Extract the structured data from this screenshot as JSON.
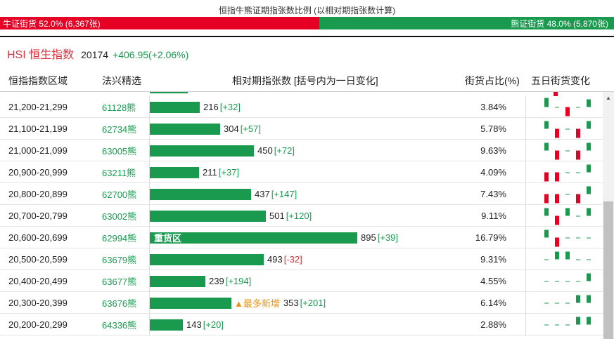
{
  "page_title": "恒指牛熊证期指张数比例 (以相对期指张数计算)",
  "ratio": {
    "bull_label": "牛证街货 52.0% (6,367张)",
    "bear_label": "熊证街货 48.0% (5,870张)",
    "bull_fraction": 0.52,
    "bear_fraction": 0.48,
    "bull_color": "#e60023",
    "bear_color": "#1a9a4f"
  },
  "index": {
    "name": "HSI 恒生指数",
    "value": "20174",
    "change": "+406.95(+2.06%)"
  },
  "columns": {
    "range": "恒指指数区域",
    "code": "法兴精选",
    "contracts": "相对期指张数 [括号内为一日变化]",
    "share": "街货占比(%)",
    "five_day": "五日街货变化"
  },
  "rows": [
    {
      "range": "21,200-21,299",
      "code": "61128熊",
      "value": 216,
      "value_text": "216",
      "change": "[+32]",
      "share": "3.84%",
      "spark": [
        2,
        0,
        -1,
        0,
        1
      ],
      "tag": ""
    },
    {
      "range": "21,100-21,199",
      "code": "62734熊",
      "value": 304,
      "value_text": "304",
      "change": "[+57]",
      "share": "5.78%",
      "spark": [
        1,
        -1,
        0,
        -1,
        1
      ],
      "tag": ""
    },
    {
      "range": "21,000-21,099",
      "code": "63005熊",
      "value": 450,
      "value_text": "450",
      "change": "[+72]",
      "share": "9.63%",
      "spark": [
        1,
        -1,
        0,
        -1,
        1
      ],
      "tag": ""
    },
    {
      "range": "20,900-20,999",
      "code": "63211熊",
      "value": 211,
      "value_text": "211",
      "change": "[+37]",
      "share": "4.09%",
      "spark": [
        -1,
        -1,
        0,
        0,
        1
      ],
      "tag": ""
    },
    {
      "range": "20,800-20,899",
      "code": "62700熊",
      "value": 437,
      "value_text": "437",
      "change": "[+147]",
      "share": "7.43%",
      "spark": [
        -1,
        -1,
        0,
        -1,
        1
      ],
      "tag": ""
    },
    {
      "range": "20,700-20,799",
      "code": "63002熊",
      "value": 501,
      "value_text": "501",
      "change": "[+120]",
      "share": "9.11%",
      "spark": [
        1,
        -1,
        1,
        0,
        1
      ],
      "tag": ""
    },
    {
      "range": "20,600-20,699",
      "code": "62994熊",
      "value": 895,
      "value_text": "895",
      "change": "[+39]",
      "share": "16.79%",
      "spark": [
        1,
        -1,
        0,
        0,
        0
      ],
      "tag": "重货区"
    },
    {
      "range": "20,500-20,599",
      "code": "63679熊",
      "value": 493,
      "value_text": "493",
      "change": "[-32]",
      "share": "9.31%",
      "spark": [
        0,
        1,
        1,
        0,
        0
      ],
      "tag": ""
    },
    {
      "range": "20,400-20,499",
      "code": "63677熊",
      "value": 239,
      "value_text": "239",
      "change": "[+194]",
      "share": "4.55%",
      "spark": [
        0,
        0,
        0,
        0,
        1
      ],
      "tag": ""
    },
    {
      "range": "20,300-20,399",
      "code": "63676熊",
      "value": 353,
      "value_text": "353",
      "change": "[+201]",
      "share": "6.14%",
      "spark": [
        0,
        0,
        0,
        1,
        1
      ],
      "tag": "▲最多新增"
    },
    {
      "range": "20,200-20,299",
      "code": "64336熊",
      "value": 143,
      "value_text": "143",
      "change": "[+20]",
      "share": "2.88%",
      "spark": [
        0,
        0,
        0,
        1,
        1
      ],
      "tag": ""
    }
  ]
}
